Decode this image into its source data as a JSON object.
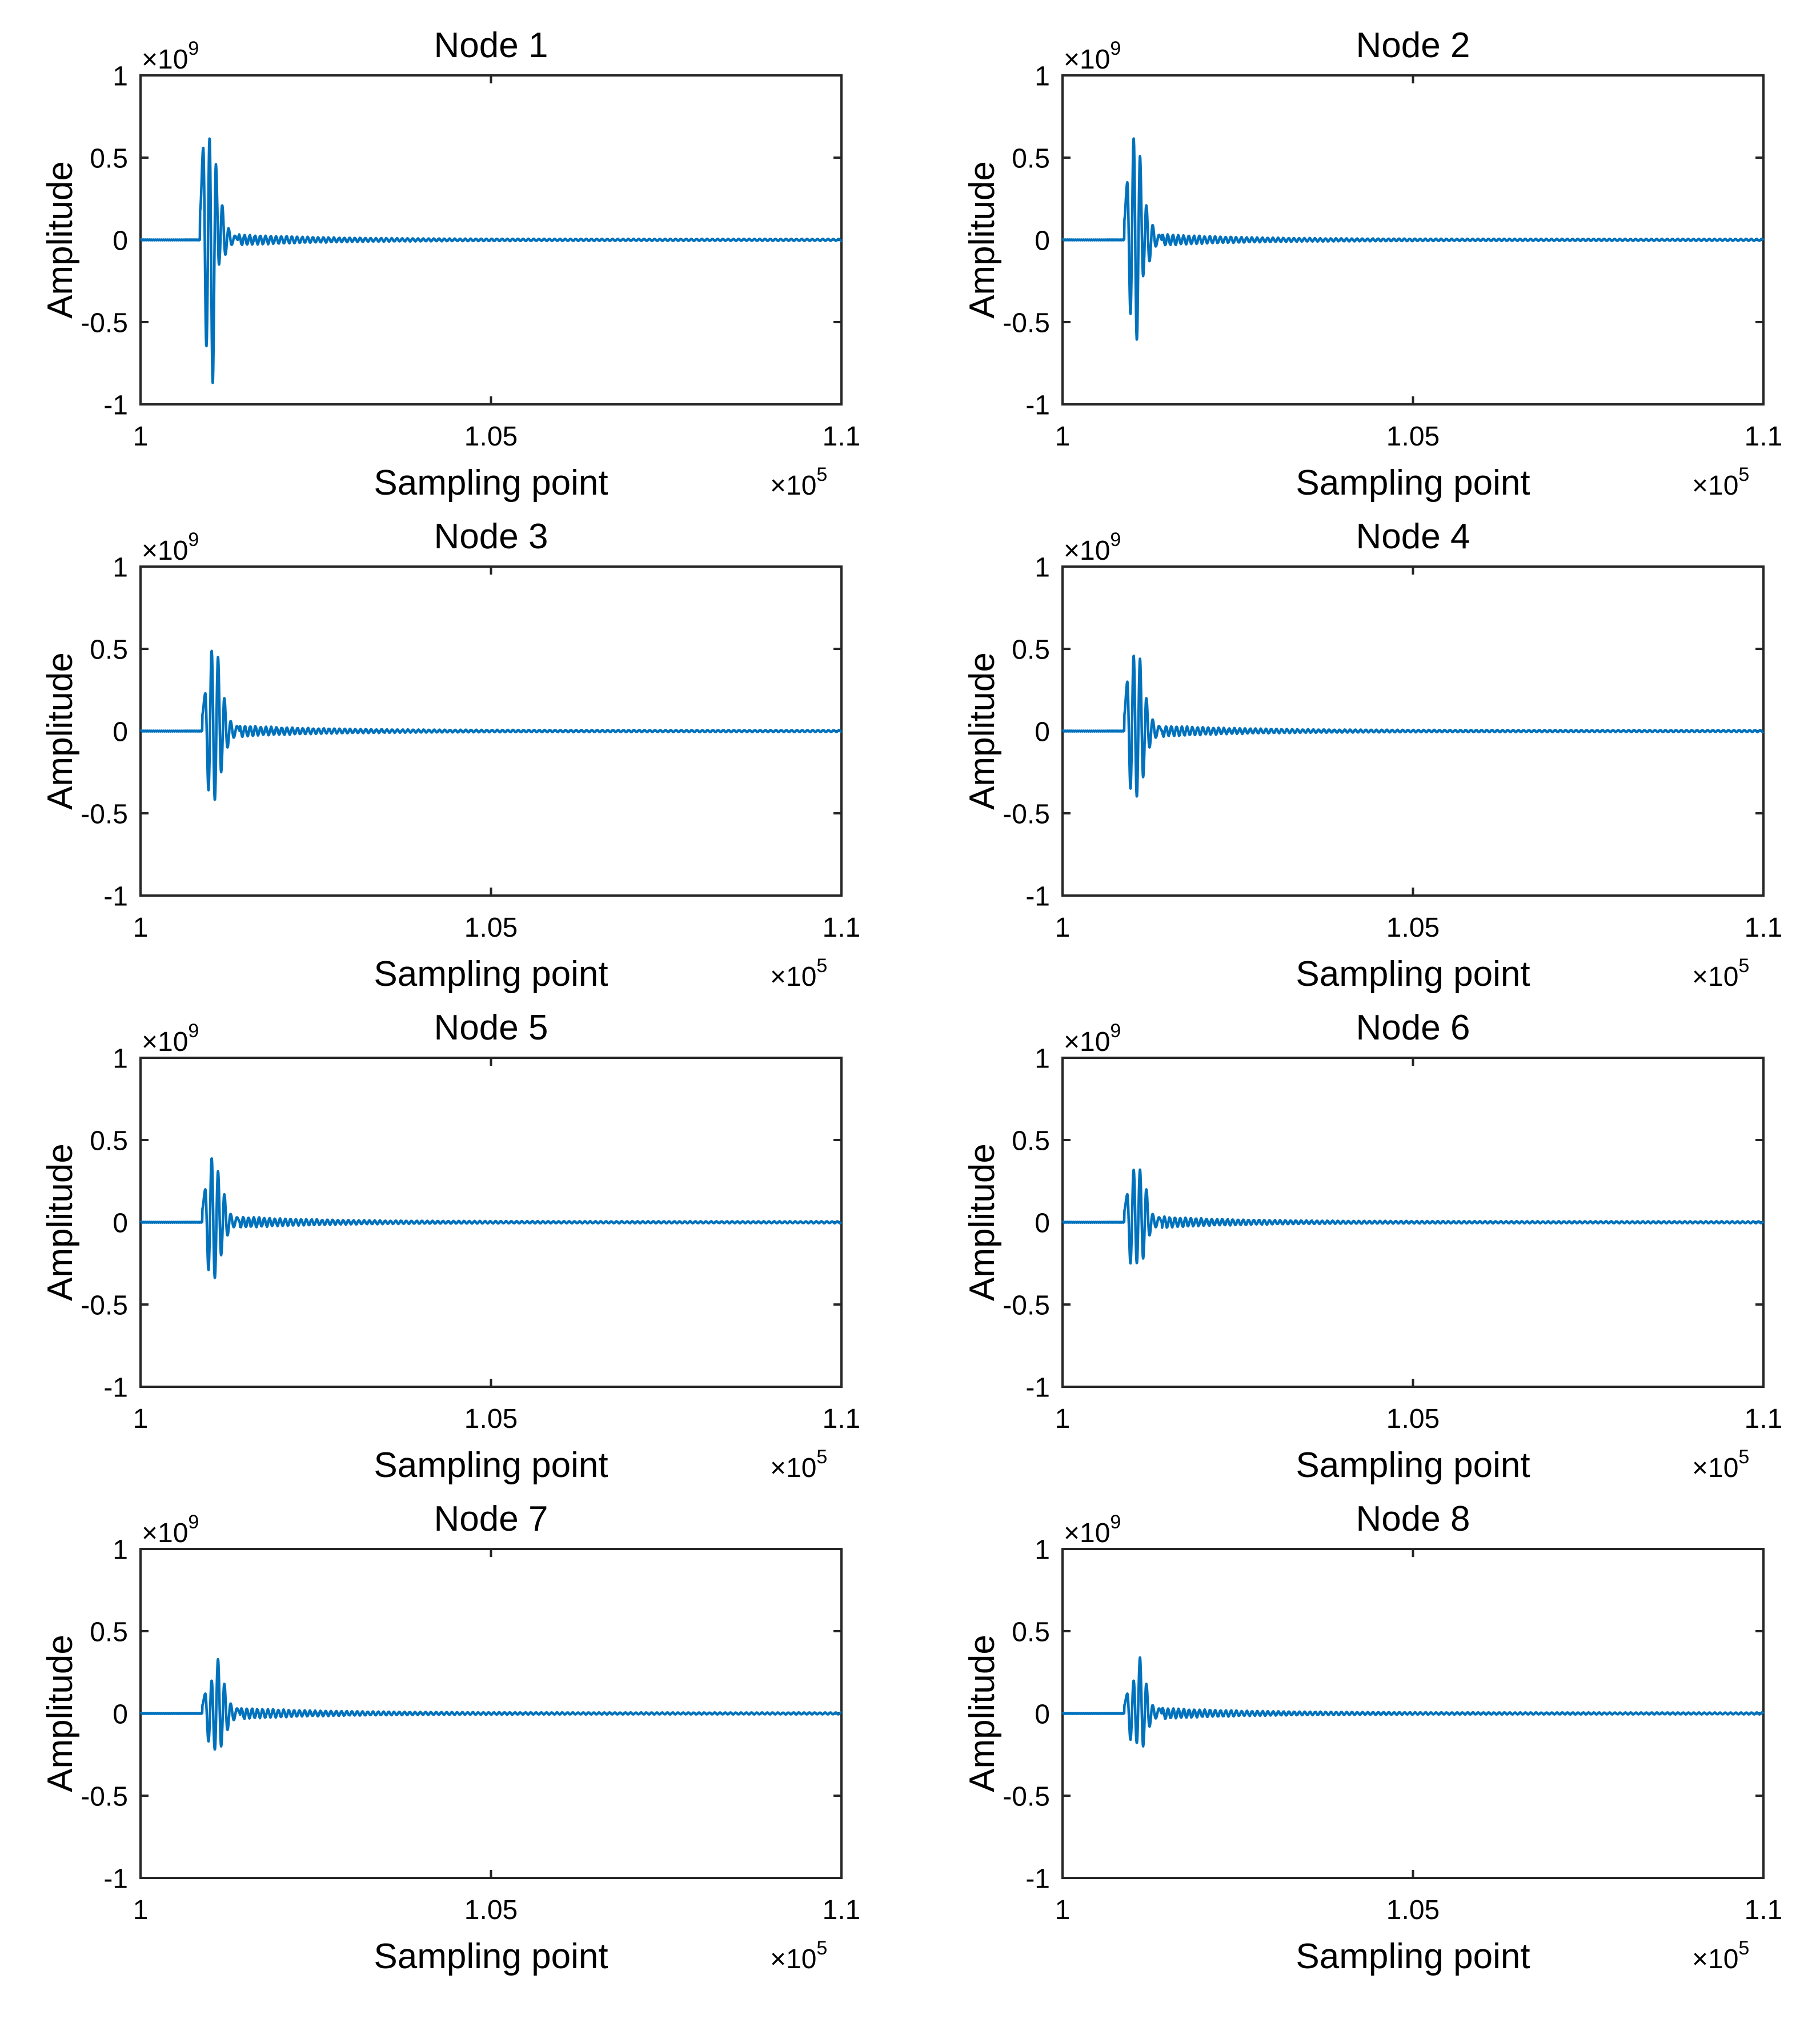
{
  "chart_data": [
    {
      "type": "line",
      "title": "Node 1",
      "xlabel": "Sampling point",
      "ylabel": "Amplitude",
      "x_exponent_label": "×10",
      "x_exponent": "5",
      "y_exponent_label": "×10",
      "y_exponent": "9",
      "xlim": [
        1,
        1.1
      ],
      "ylim": [
        -1,
        1
      ],
      "xticks": [
        1,
        1.05,
        1.1
      ],
      "xtick_labels": [
        "1",
        "1.05",
        "1.1"
      ],
      "yticks": [
        -1,
        -0.5,
        0,
        0.5,
        1
      ],
      "ytick_labels": [
        "-1",
        "-0.5",
        "0",
        "0.5",
        "1"
      ],
      "grid": false,
      "color": "#0072BD",
      "series": [
        {
          "name": "Node 1",
          "onset": 1.0085,
          "envelope": [
            0.18,
            0.56,
            -0.65,
            0.62,
            -0.87,
            0.46,
            -0.15,
            0.21,
            -0.09,
            0.07,
            -0.03,
            0.025
          ]
        }
      ]
    },
    {
      "type": "line",
      "title": "Node 2",
      "xlabel": "Sampling point",
      "ylabel": "Amplitude",
      "x_exponent_label": "×10",
      "x_exponent": "5",
      "y_exponent_label": "×10",
      "y_exponent": "9",
      "xlim": [
        1,
        1.1
      ],
      "ylim": [
        -1,
        1
      ],
      "xticks": [
        1,
        1.05,
        1.1
      ],
      "xtick_labels": [
        "1",
        "1.05",
        "1.1"
      ],
      "yticks": [
        -1,
        -0.5,
        0,
        0.5,
        1
      ],
      "ytick_labels": [
        "-1",
        "-0.5",
        "0",
        "0.5",
        "1"
      ],
      "grid": false,
      "color": "#0072BD",
      "series": [
        {
          "name": "Node 2",
          "onset": 1.0088,
          "envelope": [
            0.12,
            0.35,
            -0.45,
            0.62,
            -0.61,
            0.51,
            -0.22,
            0.21,
            -0.13,
            0.09,
            -0.04,
            0.03
          ]
        }
      ]
    },
    {
      "type": "line",
      "title": "Node 3",
      "xlabel": "Sampling point",
      "ylabel": "Amplitude",
      "x_exponent_label": "×10",
      "x_exponent": "5",
      "y_exponent_label": "×10",
      "y_exponent": "9",
      "xlim": [
        1,
        1.1
      ],
      "ylim": [
        -1,
        1
      ],
      "xticks": [
        1,
        1.05,
        1.1
      ],
      "xtick_labels": [
        "1",
        "1.05",
        "1.1"
      ],
      "yticks": [
        -1,
        -0.5,
        0,
        0.5,
        1
      ],
      "ytick_labels": [
        "-1",
        "-0.5",
        "0",
        "0.5",
        "1"
      ],
      "grid": false,
      "color": "#0072BD",
      "series": [
        {
          "name": "Node 3",
          "onset": 1.0088,
          "envelope": [
            0.1,
            0.23,
            -0.36,
            0.49,
            -0.42,
            0.45,
            -0.25,
            0.2,
            -0.1,
            0.06,
            -0.04,
            0.03
          ]
        }
      ]
    },
    {
      "type": "line",
      "title": "Node 4",
      "xlabel": "Sampling point",
      "ylabel": "Amplitude",
      "x_exponent_label": "×10",
      "x_exponent": "5",
      "y_exponent_label": "×10",
      "y_exponent": "9",
      "xlim": [
        1,
        1.1
      ],
      "ylim": [
        -1,
        1
      ],
      "xticks": [
        1,
        1.05,
        1.1
      ],
      "xtick_labels": [
        "1",
        "1.05",
        "1.1"
      ],
      "yticks": [
        -1,
        -0.5,
        0,
        0.5,
        1
      ],
      "ytick_labels": [
        "-1",
        "-0.5",
        "0",
        "0.5",
        "1"
      ],
      "grid": false,
      "color": "#0072BD",
      "series": [
        {
          "name": "Node 4",
          "onset": 1.0088,
          "envelope": [
            0.1,
            0.3,
            -0.35,
            0.46,
            -0.4,
            0.44,
            -0.28,
            0.2,
            -0.1,
            0.07,
            -0.04,
            0.03
          ]
        }
      ]
    },
    {
      "type": "line",
      "title": "Node 5",
      "xlabel": "Sampling point",
      "ylabel": "Amplitude",
      "x_exponent_label": "×10",
      "x_exponent": "5",
      "y_exponent_label": "×10",
      "y_exponent": "9",
      "xlim": [
        1,
        1.1
      ],
      "ylim": [
        -1,
        1
      ],
      "xticks": [
        1,
        1.05,
        1.1
      ],
      "xtick_labels": [
        "1",
        "1.05",
        "1.1"
      ],
      "yticks": [
        -1,
        -0.5,
        0,
        0.5,
        1
      ],
      "ytick_labels": [
        "-1",
        "-0.5",
        "0",
        "0.5",
        "1"
      ],
      "grid": false,
      "color": "#0072BD",
      "series": [
        {
          "name": "Node 5",
          "onset": 1.0088,
          "envelope": [
            0.08,
            0.2,
            -0.29,
            0.39,
            -0.34,
            0.31,
            -0.2,
            0.17,
            -0.08,
            0.05,
            -0.03,
            0.03
          ]
        }
      ]
    },
    {
      "type": "line",
      "title": "Node 6",
      "xlabel": "Sampling point",
      "ylabel": "Amplitude",
      "x_exponent_label": "×10",
      "x_exponent": "5",
      "y_exponent_label": "×10",
      "y_exponent": "9",
      "xlim": [
        1,
        1.1
      ],
      "ylim": [
        -1,
        1
      ],
      "xticks": [
        1,
        1.05,
        1.1
      ],
      "xtick_labels": [
        "1",
        "1.05",
        "1.1"
      ],
      "yticks": [
        -1,
        -0.5,
        0,
        0.5,
        1
      ],
      "ytick_labels": [
        "-1",
        "-0.5",
        "0",
        "0.5",
        "1"
      ],
      "grid": false,
      "color": "#0072BD",
      "series": [
        {
          "name": "Node 6",
          "onset": 1.0088,
          "envelope": [
            0.07,
            0.17,
            -0.25,
            0.32,
            -0.25,
            0.32,
            -0.22,
            0.2,
            -0.08,
            0.05,
            -0.03,
            0.03
          ]
        }
      ]
    },
    {
      "type": "line",
      "title": "Node 7",
      "xlabel": "Sampling point",
      "ylabel": "Amplitude",
      "x_exponent_label": "×10",
      "x_exponent": "5",
      "y_exponent_label": "×10",
      "y_exponent": "9",
      "xlim": [
        1,
        1.1
      ],
      "ylim": [
        -1,
        1
      ],
      "xticks": [
        1,
        1.05,
        1.1
      ],
      "xtick_labels": [
        "1",
        "1.05",
        "1.1"
      ],
      "yticks": [
        -1,
        -0.5,
        0,
        0.5,
        1
      ],
      "ytick_labels": [
        "-1",
        "-0.5",
        "0",
        "0.5",
        "1"
      ],
      "grid": false,
      "color": "#0072BD",
      "series": [
        {
          "name": "Node 7",
          "onset": 1.0088,
          "envelope": [
            0.05,
            0.12,
            -0.17,
            0.2,
            -0.22,
            0.33,
            -0.2,
            0.18,
            -0.1,
            0.06,
            -0.04,
            0.03
          ]
        }
      ]
    },
    {
      "type": "line",
      "title": "Node 8",
      "xlabel": "Sampling point",
      "ylabel": "Amplitude",
      "x_exponent_label": "×10",
      "x_exponent": "5",
      "y_exponent_label": "×10",
      "y_exponent": "9",
      "xlim": [
        1,
        1.1
      ],
      "ylim": [
        -1,
        1
      ],
      "xticks": [
        1,
        1.05,
        1.1
      ],
      "xtick_labels": [
        "1",
        "1.05",
        "1.1"
      ],
      "yticks": [
        -1,
        -0.5,
        0,
        0.5,
        1
      ],
      "ytick_labels": [
        "-1",
        "-0.5",
        "0",
        "0.5",
        "1"
      ],
      "grid": false,
      "color": "#0072BD",
      "series": [
        {
          "name": "Node 8",
          "onset": 1.0088,
          "envelope": [
            0.05,
            0.12,
            -0.16,
            0.2,
            -0.18,
            0.34,
            -0.2,
            0.18,
            -0.08,
            0.05,
            -0.03,
            0.03
          ]
        }
      ]
    }
  ]
}
